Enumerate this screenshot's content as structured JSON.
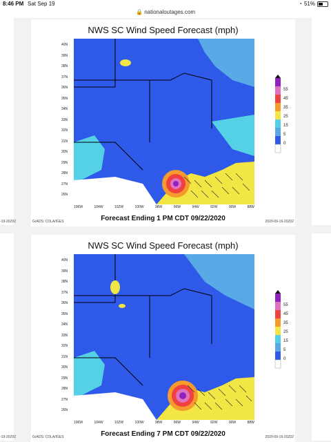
{
  "status_bar": {
    "time": "8:46 PM",
    "date": "Sat Sep 19",
    "battery": "51%",
    "battery_level": 0.51
  },
  "browser": {
    "url": "nationaloutages.com"
  },
  "side_labels": {
    "left_edge": "-19-20Z02"
  },
  "panels": [
    {
      "title": "NWS SC Wind Speed Forecast (mph)",
      "footer": "Forecast Ending 1 PM CDT 09/22/2020",
      "credit_left": "GrADS: COLA/IGES",
      "credit_right": "2020-09-19-20Z02",
      "lat_labels": [
        "40N",
        "39N",
        "38N",
        "37N",
        "36N",
        "35N",
        "34N",
        "33N",
        "32N",
        "31N",
        "30N",
        "29N",
        "28N",
        "27N",
        "26N"
      ],
      "lon_labels": [
        "106W",
        "104W",
        "102W",
        "100W",
        "98W",
        "96W",
        "94W",
        "92W",
        "90W",
        "88W"
      ],
      "colorbar_labels": [
        "55",
        "45",
        "35",
        "25",
        "15",
        "5",
        "0"
      ]
    },
    {
      "title": "NWS SC Wind Speed Forecast (mph)",
      "footer": "Forecast Ending 7 PM CDT 09/22/2020",
      "credit_left": "GrADS: COLA/IGES",
      "credit_right": "2020-09-19-20Z02",
      "lat_labels": [
        "40N",
        "39N",
        "38N",
        "37N",
        "36N",
        "35N",
        "34N",
        "33N",
        "32N",
        "31N",
        "30N",
        "29N",
        "28N",
        "27N",
        "26N"
      ],
      "lon_labels": [
        "106W",
        "104W",
        "102W",
        "100W",
        "98W",
        "96W",
        "94W",
        "92W",
        "90W",
        "88W"
      ],
      "colorbar_labels": [
        "55",
        "45",
        "35",
        "25",
        "15",
        "5",
        "0"
      ]
    }
  ],
  "colors": {
    "ocean_yellow": "#f2e645",
    "land_blue": "#2f59e8",
    "light_blue": "#59a9e6",
    "cyan": "#55d1e6",
    "storm_red": "#f04040",
    "storm_purple": "#9020c0",
    "storm_pink": "#e070c0",
    "orange": "#f59a2c"
  }
}
